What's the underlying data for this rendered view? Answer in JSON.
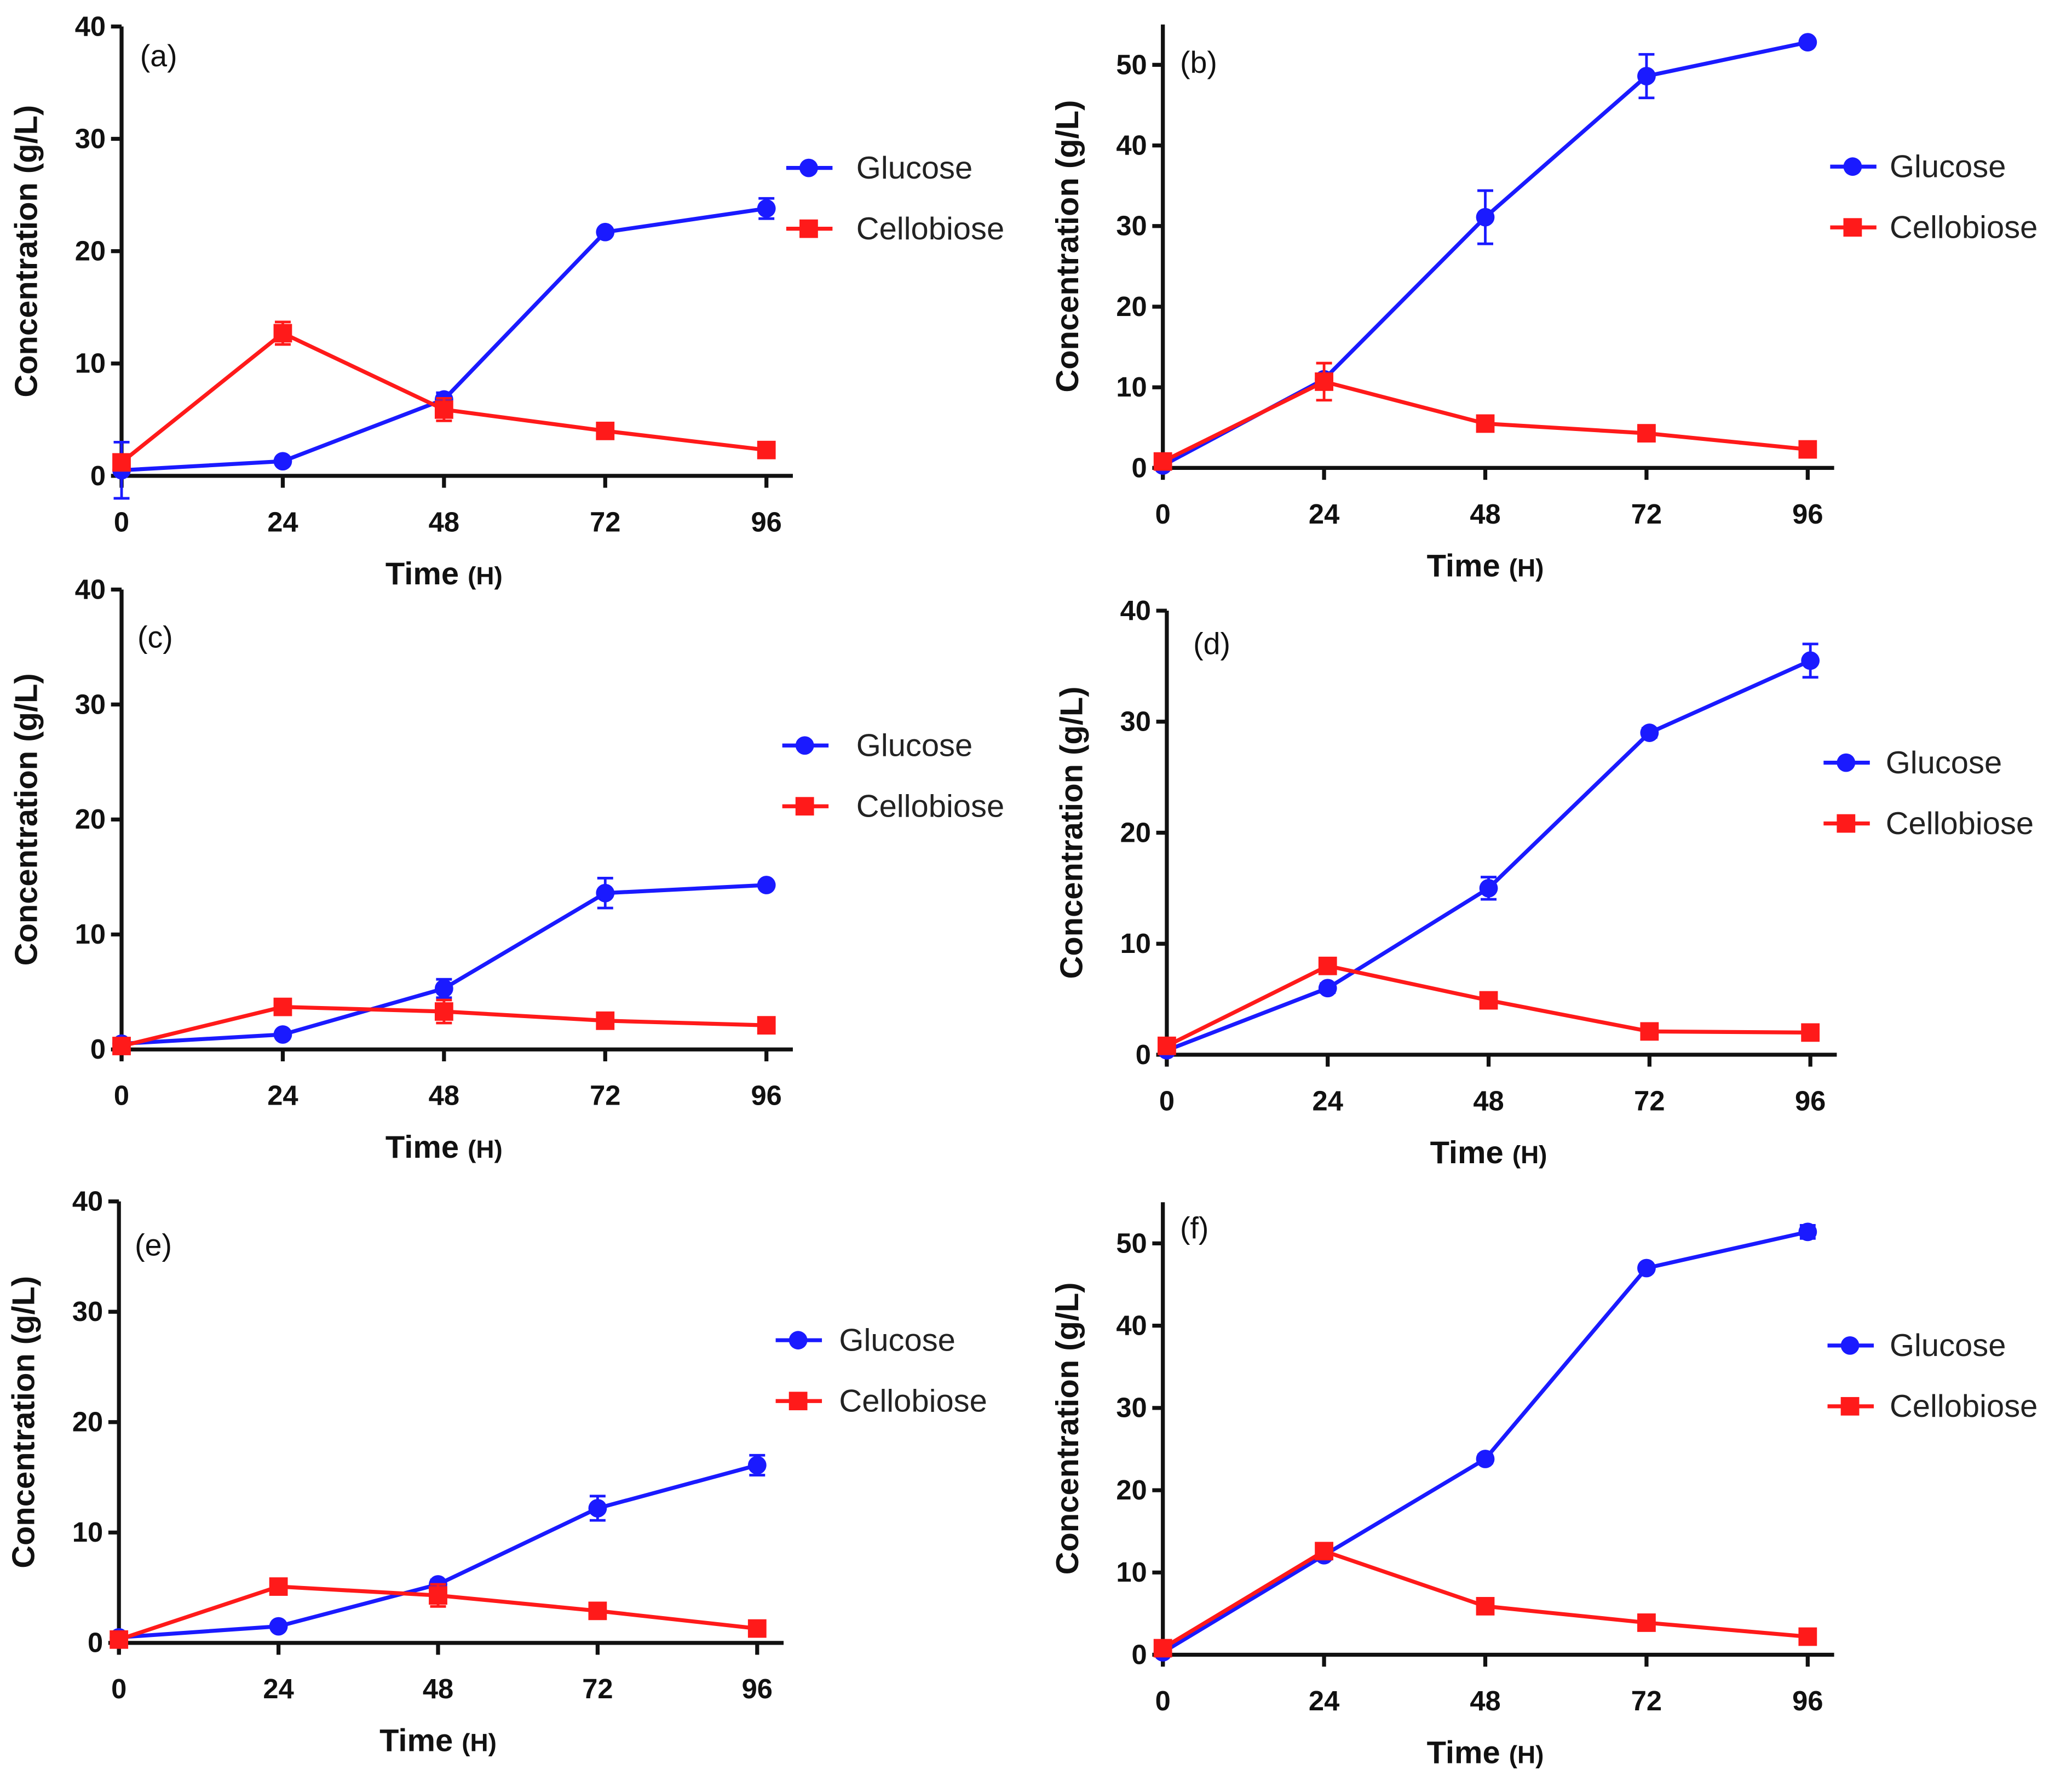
{
  "colors": {
    "glucose": "#1a1aff",
    "cellobiose": "#ff1a1a",
    "axis": "#111111"
  },
  "chart_data": [
    {
      "type": "line",
      "panel": "(a)",
      "xlabel": "Time",
      "xlabel_unit": "(H)",
      "ylabel": "Concentration (g/L)",
      "x": [
        0,
        24,
        48,
        72,
        96
      ],
      "xticks": [
        "0",
        "24",
        "48",
        "72",
        "96"
      ],
      "ylim": [
        0,
        40
      ],
      "yticks": [
        "0",
        "10",
        "20",
        "30",
        "40"
      ],
      "legend": "right",
      "series": [
        {
          "name": "Glucose",
          "marker": "circle",
          "values": [
            0.5,
            1.3,
            6.8,
            21.7,
            23.8
          ],
          "errors": [
            2.5,
            0.3,
            0.6,
            0.3,
            0.9
          ]
        },
        {
          "name": "Cellobiose",
          "marker": "square",
          "values": [
            1.2,
            12.7,
            5.9,
            4.0,
            2.3
          ],
          "errors": [
            0.5,
            1.0,
            1.0,
            0.3,
            0.3
          ]
        }
      ]
    },
    {
      "type": "line",
      "panel": "(b)",
      "xlabel": "Time",
      "xlabel_unit": "(H)",
      "ylabel": "Concentration (g/L)",
      "x": [
        0,
        24,
        48,
        72,
        96
      ],
      "xticks": [
        "0",
        "24",
        "48",
        "72",
        "96"
      ],
      "ylim": [
        0,
        55
      ],
      "yticks": [
        "0",
        "10",
        "20",
        "30",
        "40",
        "50"
      ],
      "legend": "right",
      "series": [
        {
          "name": "Glucose",
          "marker": "circle",
          "values": [
            0.3,
            11.0,
            31.1,
            48.6,
            52.8
          ],
          "errors": [
            0.3,
            0.5,
            3.3,
            2.7,
            0.3
          ]
        },
        {
          "name": "Cellobiose",
          "marker": "square",
          "values": [
            0.8,
            10.7,
            5.5,
            4.3,
            2.3
          ],
          "errors": [
            0.3,
            2.3,
            0.4,
            0.3,
            0.3
          ]
        }
      ]
    },
    {
      "type": "line",
      "panel": "(c)",
      "xlabel": "Time",
      "xlabel_unit": "(H)",
      "ylabel": "Concentration (g/L)",
      "x": [
        0,
        24,
        48,
        72,
        96
      ],
      "xticks": [
        "0",
        "24",
        "48",
        "72",
        "96"
      ],
      "ylim": [
        0,
        40
      ],
      "yticks": [
        "0",
        "10",
        "20",
        "30",
        "40"
      ],
      "legend": "right",
      "series": [
        {
          "name": "Glucose",
          "marker": "circle",
          "values": [
            0.5,
            1.3,
            5.3,
            13.6,
            14.3
          ],
          "errors": [
            0.3,
            0.3,
            0.8,
            1.3,
            0.3
          ]
        },
        {
          "name": "Cellobiose",
          "marker": "square",
          "values": [
            0.3,
            3.7,
            3.3,
            2.5,
            2.1
          ],
          "errors": [
            0.2,
            0.4,
            1.0,
            0.3,
            0.3
          ]
        }
      ]
    },
    {
      "type": "line",
      "panel": "(d)",
      "xlabel": "Time",
      "xlabel_unit": "(H)",
      "ylabel": "Concentration (g/L)",
      "x": [
        0,
        24,
        48,
        72,
        96
      ],
      "xticks": [
        "0",
        "24",
        "48",
        "72",
        "96"
      ],
      "ylim": [
        0,
        40
      ],
      "yticks": [
        "0",
        "10",
        "20",
        "30",
        "40"
      ],
      "legend": "right",
      "series": [
        {
          "name": "Glucose",
          "marker": "circle",
          "values": [
            0.4,
            6.0,
            15.0,
            29.0,
            35.5
          ],
          "errors": [
            0.3,
            0.4,
            1.0,
            0.4,
            1.5
          ]
        },
        {
          "name": "Cellobiose",
          "marker": "square",
          "values": [
            0.8,
            8.0,
            4.9,
            2.1,
            2.0
          ],
          "errors": [
            0.3,
            0.5,
            0.4,
            0.3,
            0.3
          ]
        }
      ]
    },
    {
      "type": "line",
      "panel": "(e)",
      "xlabel": "Time",
      "xlabel_unit": "(H)",
      "ylabel": "Concentration (g/L)",
      "x": [
        0,
        24,
        48,
        72,
        96
      ],
      "xticks": [
        "0",
        "24",
        "48",
        "72",
        "96"
      ],
      "ylim": [
        0,
        40
      ],
      "yticks": [
        "0",
        "10",
        "20",
        "30",
        "40"
      ],
      "legend": "right",
      "series": [
        {
          "name": "Glucose",
          "marker": "circle",
          "values": [
            0.5,
            1.5,
            5.3,
            12.2,
            16.1
          ],
          "errors": [
            0.3,
            0.3,
            0.4,
            1.1,
            0.9
          ]
        },
        {
          "name": "Cellobiose",
          "marker": "square",
          "values": [
            0.3,
            5.1,
            4.3,
            2.9,
            1.3
          ],
          "errors": [
            0.2,
            0.4,
            1.0,
            0.3,
            0.3
          ]
        }
      ]
    },
    {
      "type": "line",
      "panel": "(f)",
      "xlabel": "Time",
      "xlabel_unit": "(H)",
      "ylabel": "Concentration (g/L)",
      "x": [
        0,
        24,
        48,
        72,
        96
      ],
      "xticks": [
        "0",
        "24",
        "48",
        "72",
        "96"
      ],
      "ylim": [
        0,
        55
      ],
      "yticks": [
        "0",
        "10",
        "20",
        "30",
        "40",
        "50"
      ],
      "legend": "right",
      "series": [
        {
          "name": "Glucose",
          "marker": "circle",
          "values": [
            0.3,
            12.1,
            23.8,
            47.0,
            51.4
          ],
          "errors": [
            0.3,
            0.5,
            0.5,
            0.4,
            0.8
          ]
        },
        {
          "name": "Cellobiose",
          "marker": "square",
          "values": [
            0.8,
            12.6,
            5.9,
            3.9,
            2.2
          ],
          "errors": [
            0.3,
            0.6,
            0.4,
            0.3,
            0.3
          ]
        }
      ]
    }
  ]
}
